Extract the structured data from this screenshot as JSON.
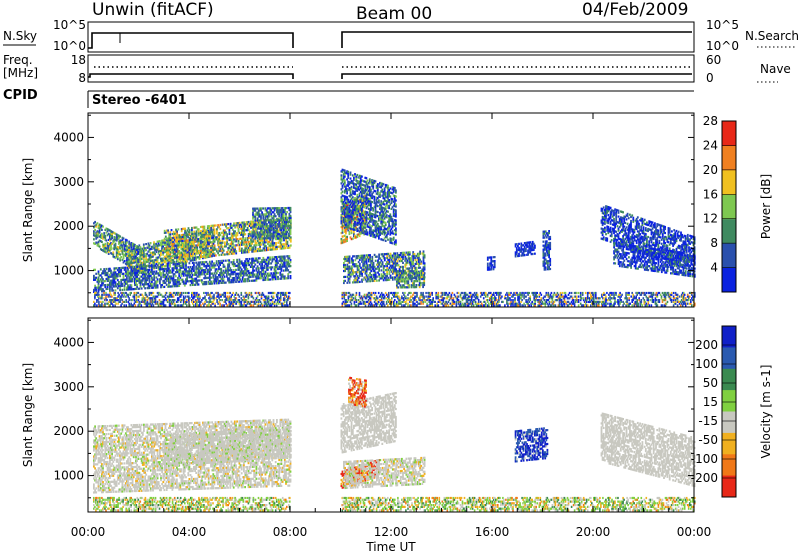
{
  "header": {
    "title": "Unwin (fitACF)",
    "beam": "Beam 00",
    "date": "04/Feb/2009"
  },
  "status_panels": {
    "nsky_label": "N.Sky",
    "nsky_ticks": [
      "10^5",
      "10^0"
    ],
    "nsearch_label": "N.Search",
    "nsearch_ticks": [
      "10^5",
      "10^0"
    ],
    "freq_label_line1": "Freq.",
    "freq_label_line2": "[MHz]",
    "freq_ticks": [
      "18",
      "8"
    ],
    "nave_label": "Nave",
    "nave_ticks": [
      "60",
      "0"
    ],
    "cpid_label": "CPID",
    "cpid_value": "Stereo -6401"
  },
  "chart_data": [
    {
      "type": "heatmap",
      "parameter": "power",
      "ylabel": "Slant Range [km]",
      "ylim": [
        180,
        4550
      ],
      "yticks": [
        "1000",
        "2000",
        "3000",
        "4000"
      ],
      "ytick_values": [
        1000,
        2000,
        3000,
        4000
      ],
      "colorbar_label": "Power [dB]",
      "colorbar_ticks": [
        "4",
        "8",
        "12",
        "16",
        "20",
        "24",
        "28"
      ],
      "colors": [
        "#0a22e0",
        "#2a50ad",
        "#3f8a60",
        "#7ec850",
        "#f0c020",
        "#f08020",
        "#e82818"
      ],
      "data_gap_hours": [
        8.0,
        10.0
      ]
    },
    {
      "type": "heatmap",
      "parameter": "velocity",
      "ylabel": "Slant Range [km]",
      "ylim": [
        180,
        4550
      ],
      "yticks": [
        "1000",
        "2000",
        "3000",
        "4000"
      ],
      "ytick_values": [
        1000,
        2000,
        3000,
        4000
      ],
      "colorbar_label": "Velocity [m s-1]",
      "colorbar_ticks": [
        "200",
        "100",
        "50",
        "15",
        "-15",
        "-50",
        "-100",
        "-200"
      ],
      "colors": [
        "#1020c8",
        "#2a5ab0",
        "#3a8a50",
        "#80d040",
        "#c8c8c0",
        "#f0b020",
        "#f07818",
        "#e82818"
      ],
      "data_gap_hours": [
        8.0,
        10.0
      ]
    }
  ],
  "time_axis": {
    "label": "Time UT",
    "ticks": [
      "00:00",
      "04:00",
      "08:00",
      "12:00",
      "16:00",
      "20:00",
      "00:00"
    ],
    "range_hours": [
      0,
      24
    ]
  }
}
